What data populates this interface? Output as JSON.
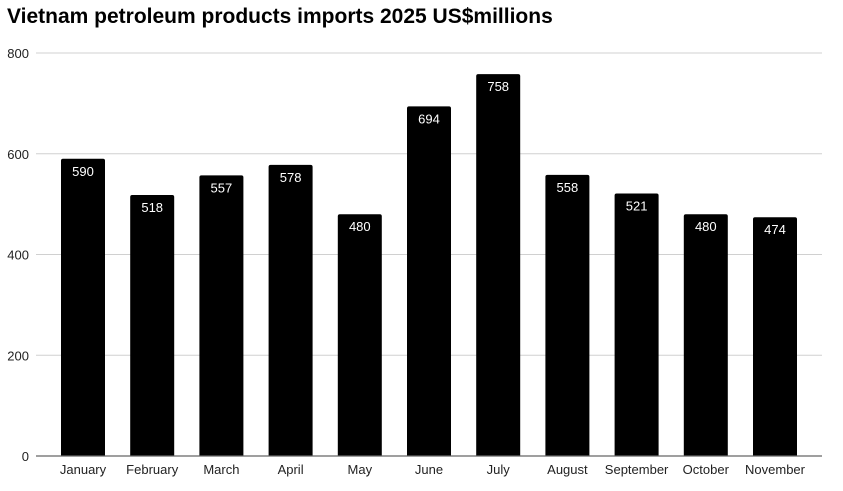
{
  "chart_data": {
    "type": "bar",
    "title": "Vietnam petroleum products imports 2025 US$millions",
    "xlabel": "",
    "ylabel": "",
    "ylim": [
      0,
      800
    ],
    "yticks": [
      0,
      200,
      400,
      600,
      800
    ],
    "grid": true,
    "legend": "none",
    "categories": [
      "January",
      "February",
      "March",
      "April",
      "May",
      "June",
      "July",
      "August",
      "September",
      "October",
      "November"
    ],
    "values": [
      590,
      518,
      557,
      578,
      480,
      694,
      758,
      558,
      521,
      480,
      474
    ],
    "bar_color": "#000000",
    "label_color": "#ffffff"
  }
}
